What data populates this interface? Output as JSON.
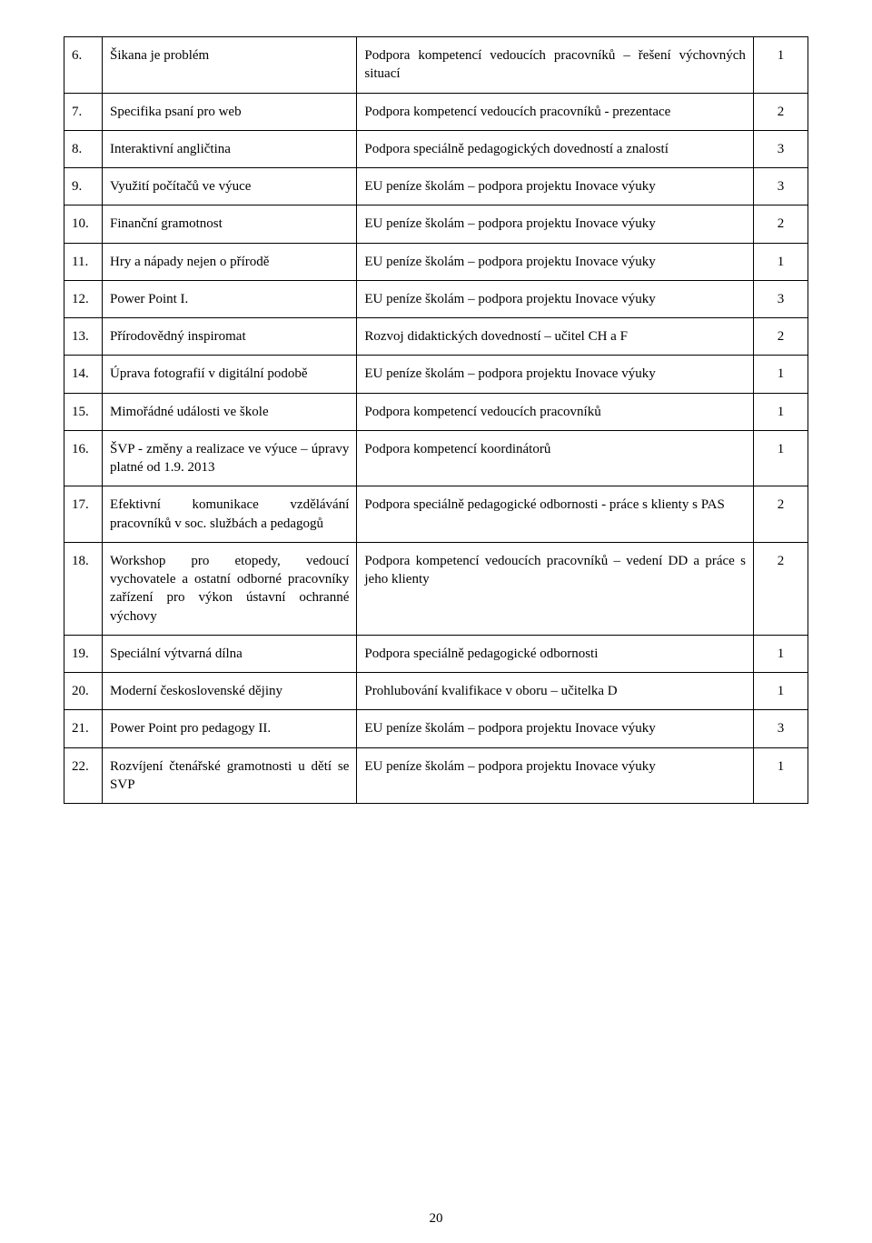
{
  "page_number": "20",
  "rows": [
    {
      "n": "6.",
      "title": "Šikana je problém",
      "desc": "Podpora kompetencí vedoucích pracovníků – řešení výchovných situací",
      "count": "1"
    },
    {
      "n": "7.",
      "title": "Specifika psaní pro web",
      "desc": "Podpora kompetencí vedoucích pracovníků - prezentace",
      "count": "2"
    },
    {
      "n": "8.",
      "title": "Interaktivní angličtina",
      "desc": "Podpora speciálně pedagogických dovedností a znalostí",
      "count": "3"
    },
    {
      "n": "9.",
      "title": "Využití počítačů ve výuce",
      "desc": "EU peníze školám – podpora projektu Inovace výuky",
      "count": "3"
    },
    {
      "n": "10.",
      "title": "Finanční gramotnost",
      "desc": "EU peníze školám – podpora projektu Inovace výuky",
      "count": "2"
    },
    {
      "n": "11.",
      "title": "Hry a nápady nejen o přírodě",
      "desc": "EU peníze školám – podpora projektu Inovace výuky",
      "count": "1"
    },
    {
      "n": "12.",
      "title": "Power Point I.",
      "desc": "EU peníze školám – podpora projektu Inovace výuky",
      "count": "3"
    },
    {
      "n": "13.",
      "title": "Přírodovědný inspiromat",
      "desc": "Rozvoj didaktických dovedností – učitel CH a F",
      "count": "2"
    },
    {
      "n": "14.",
      "title": "Úprava fotografií v digitální podobě",
      "desc": "EU peníze školám – podpora projektu Inovace výuky",
      "count": "1"
    },
    {
      "n": "15.",
      "title": "Mimořádné události ve škole",
      "desc": "Podpora kompetencí vedoucích pracovníků",
      "count": "1"
    },
    {
      "n": "16.",
      "title": "ŠVP - změny a realizace ve výuce – úpravy platné od 1.9. 2013",
      "desc": "Podpora kompetencí koordinátorů",
      "count": "1"
    },
    {
      "n": "17.",
      "title": "Efektivní komunikace vzdělávání pracovníků v soc. službách a pedagogů",
      "desc": "Podpora speciálně pedagogické odbornosti - práce s klienty s PAS",
      "count": "2"
    },
    {
      "n": "18.",
      "title": "Workshop pro etopedy, vedoucí vychovatele a ostatní odborné pracovníky zařízení pro výkon ústavní  ochranné výchovy",
      "desc": "Podpora kompetencí vedoucích pracovníků – vedení DD a práce s jeho klienty",
      "count": "2"
    },
    {
      "n": "19.",
      "title": "Speciální výtvarná dílna",
      "desc": "Podpora speciálně pedagogické odbornosti",
      "count": "1"
    },
    {
      "n": "20.",
      "title": "Moderní československé dějiny",
      "desc": "Prohlubování kvalifikace v oboru – učitelka D",
      "count": "1"
    },
    {
      "n": "21.",
      "title": "Power Point pro pedagogy II.",
      "desc": "EU peníze školám – podpora projektu Inovace výuky",
      "count": "3"
    },
    {
      "n": "22.",
      "title": "Rozvíjení čtenářské gramotnosti u dětí se SVP",
      "desc": "EU peníze školám – podpora projektu Inovace výuky",
      "count": "1"
    }
  ]
}
